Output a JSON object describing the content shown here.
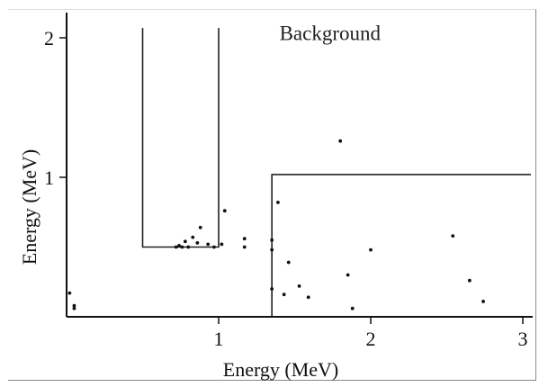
{
  "chart_data": {
    "type": "scatter",
    "title": "",
    "xlabel": "Energy (MeV)",
    "ylabel": "Energy (MeV)",
    "xlim": [
      0,
      3.1
    ],
    "ylim": [
      0,
      2.15
    ],
    "x_ticks": [
      {
        "value": 1,
        "label": "1"
      },
      {
        "value": 2,
        "label": "2"
      },
      {
        "value": 3,
        "label": "3"
      }
    ],
    "y_ticks": [
      {
        "value": 1,
        "label": "1"
      },
      {
        "value": 2,
        "label": "2"
      }
    ],
    "grid": false,
    "annotations": [
      {
        "text": "Background",
        "x": 1.4,
        "y": 2.05
      }
    ],
    "regions": [
      {
        "name": "tall-box",
        "points": [
          [
            0.5,
            2.07
          ],
          [
            0.5,
            0.5
          ],
          [
            1.0,
            0.5
          ],
          [
            1.0,
            2.07
          ]
        ]
      },
      {
        "name": "wide-box",
        "points": [
          [
            1.35,
            0.0
          ],
          [
            1.35,
            1.02
          ],
          [
            3.3,
            1.02
          ]
        ]
      }
    ],
    "points": [
      [
        0.02,
        0.17
      ],
      [
        0.05,
        0.08
      ],
      [
        0.05,
        0.06
      ],
      [
        0.72,
        0.5
      ],
      [
        0.74,
        0.51
      ],
      [
        0.76,
        0.5
      ],
      [
        0.78,
        0.54
      ],
      [
        0.8,
        0.5
      ],
      [
        0.83,
        0.57
      ],
      [
        0.86,
        0.53
      ],
      [
        0.88,
        0.64
      ],
      [
        0.93,
        0.52
      ],
      [
        0.97,
        0.5
      ],
      [
        1.02,
        0.52
      ],
      [
        1.04,
        0.76
      ],
      [
        1.17,
        0.56
      ],
      [
        1.17,
        0.5
      ],
      [
        1.35,
        0.2
      ],
      [
        1.35,
        0.55
      ],
      [
        1.35,
        0.48
      ],
      [
        1.39,
        0.82
      ],
      [
        1.43,
        0.16
      ],
      [
        1.46,
        0.39
      ],
      [
        1.53,
        0.22
      ],
      [
        1.59,
        0.14
      ],
      [
        1.8,
        1.26
      ],
      [
        1.85,
        0.3
      ],
      [
        1.88,
        0.06
      ],
      [
        2.0,
        0.48
      ],
      [
        2.54,
        0.58
      ],
      [
        2.65,
        0.26
      ],
      [
        2.74,
        0.11
      ]
    ]
  }
}
